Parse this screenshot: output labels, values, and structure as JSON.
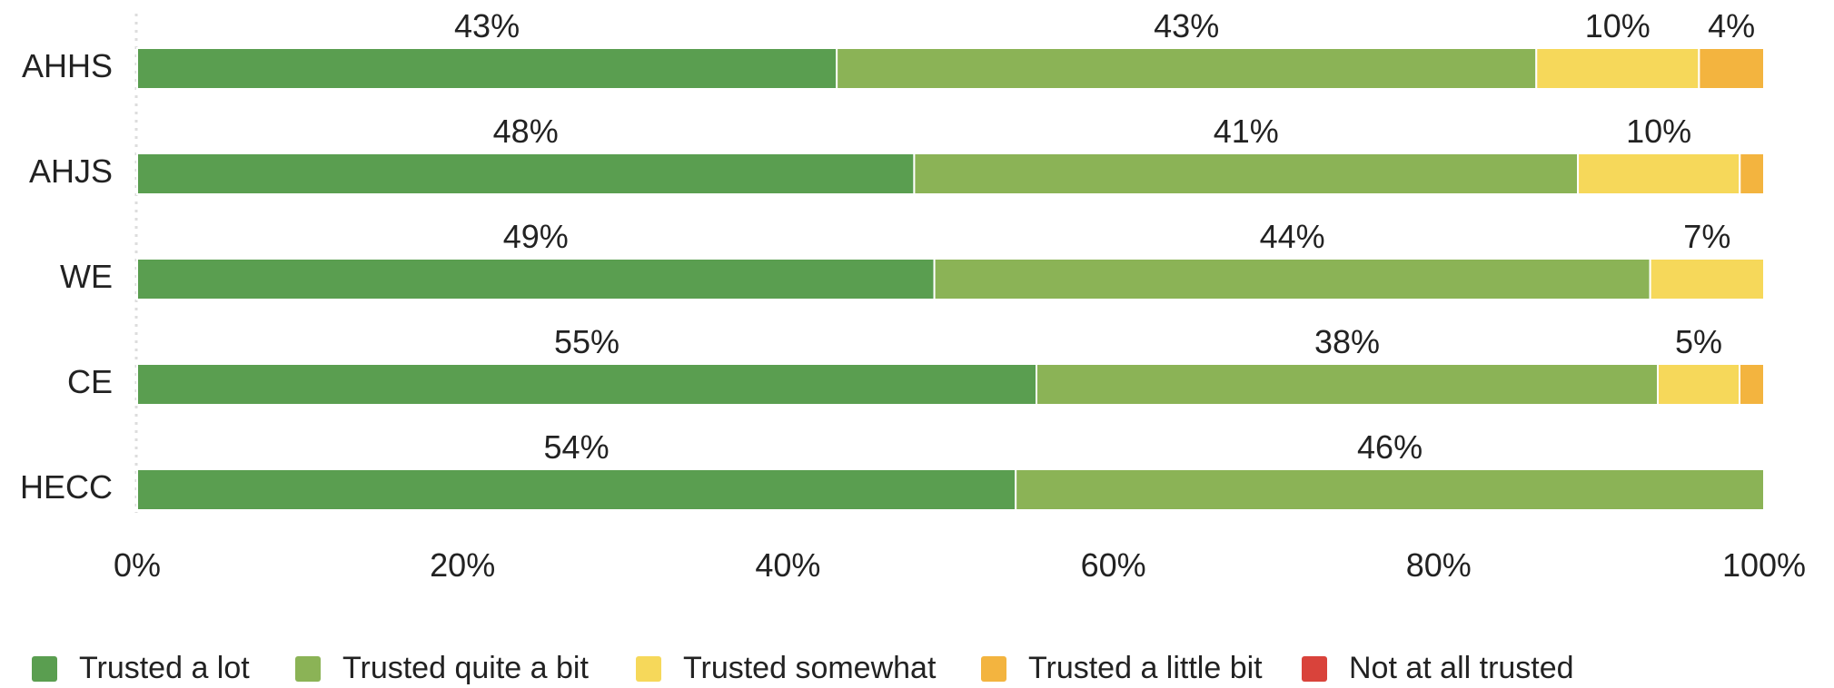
{
  "chart_data": {
    "type": "bar",
    "orientation": "horizontal",
    "stacked": true,
    "categories": [
      "AHHS",
      "AHJS",
      "WE",
      "CE",
      "HECC"
    ],
    "series": [
      {
        "name": "Trusted a lot",
        "color": "#5a9e50",
        "values": [
          43,
          48,
          49,
          55,
          54
        ],
        "labels": [
          "43%",
          "48%",
          "49%",
          "55%",
          "54%"
        ]
      },
      {
        "name": "Trusted quite a bit",
        "color": "#8bb356",
        "values": [
          43,
          41,
          44,
          38,
          46
        ],
        "labels": [
          "43%",
          "41%",
          "44%",
          "38%",
          "46%"
        ]
      },
      {
        "name": "Trusted somewhat",
        "color": "#f6d85a",
        "values": [
          10,
          10,
          7,
          5,
          0
        ],
        "labels": [
          "10%",
          "10%",
          "7%",
          "5%",
          ""
        ]
      },
      {
        "name": "Trusted a little bit",
        "color": "#f3b43f",
        "values": [
          4,
          1.5,
          0,
          1.5,
          0
        ],
        "labels": [
          "4%",
          "",
          "",
          "",
          ""
        ]
      },
      {
        "name": "Not at all trusted",
        "color": "#d9433b",
        "values": [
          0,
          0,
          0,
          0,
          0
        ],
        "labels": [
          "",
          "",
          "",
          "",
          ""
        ]
      }
    ],
    "xlim": [
      0,
      100
    ],
    "xticks": [
      0,
      20,
      40,
      60,
      80,
      100
    ],
    "xtick_labels": [
      "0%",
      "20%",
      "40%",
      "60%",
      "80%",
      "100%"
    ],
    "grid": false,
    "legend_position": "bottom"
  }
}
